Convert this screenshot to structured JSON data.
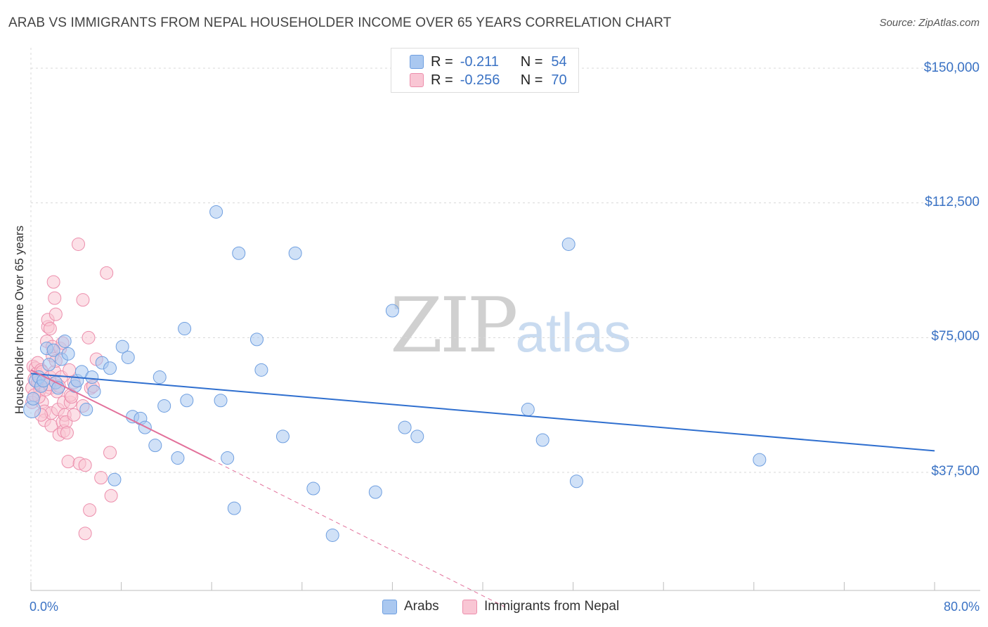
{
  "header": {
    "title": "ARAB VS IMMIGRANTS FROM NEPAL HOUSEHOLDER INCOME OVER 65 YEARS CORRELATION CHART",
    "source": "Source: ZipAtlas.com"
  },
  "watermark": {
    "zip": "ZIP",
    "atlas": "atlas"
  },
  "legend": {
    "rows": [
      {
        "r_label": "R =",
        "r_value": "-0.211",
        "n_label": "N =",
        "n_value": "54",
        "color": "#aac8f0",
        "border": "#6f9fe0"
      },
      {
        "r_label": "R =",
        "r_value": "-0.256",
        "n_label": "N =",
        "n_value": "70",
        "color": "#f9c6d4",
        "border": "#ec8eac"
      }
    ]
  },
  "bottom_legend": {
    "series1": "Arabs",
    "series2": "Immigrants from Nepal"
  },
  "colors": {
    "arabs_fill": "#aac8f0",
    "arabs_stroke": "#6f9fe0",
    "arabs_line": "#2f6fcf",
    "nepal_fill": "#f9c6d4",
    "nepal_stroke": "#ec8eac",
    "nepal_line": "#e2709a",
    "grid": "#d8d8d8",
    "axis_text": "#3a72c4"
  },
  "chart_data": {
    "type": "scatter",
    "title": "ARAB VS IMMIGRANTS FROM NEPAL HOUSEHOLDER INCOME OVER 65 YEARS CORRELATION CHART",
    "xlabel": "",
    "ylabel": "Householder Income Over 65 years",
    "xlim": [
      0,
      80
    ],
    "ylim": [
      0,
      155000
    ],
    "x_tick_labels": [
      "0.0%",
      "80.0%"
    ],
    "y_ticks": [
      37500,
      75000,
      112500,
      150000
    ],
    "y_tick_labels": [
      "$37,500",
      "$75,000",
      "$112,500",
      "$150,000"
    ],
    "grid": true,
    "series": [
      {
        "name": "Arabs",
        "R": -0.211,
        "N": 54,
        "trend": {
          "x": [
            0,
            80
          ],
          "y": [
            65000,
            43500
          ]
        },
        "points": [
          [
            0.1,
            55000
          ],
          [
            0.2,
            58000
          ],
          [
            0.4,
            63000
          ],
          [
            0.7,
            64000
          ],
          [
            0.9,
            61500
          ],
          [
            1.1,
            63000
          ],
          [
            1.4,
            72000
          ],
          [
            1.6,
            67500
          ],
          [
            2.0,
            71500
          ],
          [
            2.2,
            62500
          ],
          [
            2.4,
            61000
          ],
          [
            2.7,
            69000
          ],
          [
            3.0,
            74000
          ],
          [
            3.3,
            70500
          ],
          [
            3.9,
            61500
          ],
          [
            4.1,
            63000
          ],
          [
            4.5,
            65500
          ],
          [
            4.9,
            55000
          ],
          [
            5.4,
            64000
          ],
          [
            5.6,
            60000
          ],
          [
            6.3,
            68000
          ],
          [
            7.0,
            66500
          ],
          [
            7.4,
            35500
          ],
          [
            8.1,
            72500
          ],
          [
            8.6,
            69500
          ],
          [
            9.0,
            53000
          ],
          [
            9.7,
            52500
          ],
          [
            10.1,
            50000
          ],
          [
            11.0,
            45000
          ],
          [
            11.4,
            64000
          ],
          [
            11.8,
            56000
          ],
          [
            13.0,
            41500
          ],
          [
            13.6,
            77500
          ],
          [
            13.8,
            57500
          ],
          [
            16.4,
            110000
          ],
          [
            16.8,
            57500
          ],
          [
            17.4,
            41500
          ],
          [
            18.0,
            27500
          ],
          [
            18.4,
            98500
          ],
          [
            20.0,
            74500
          ],
          [
            20.4,
            66000
          ],
          [
            22.3,
            47500
          ],
          [
            23.4,
            98500
          ],
          [
            25.0,
            33000
          ],
          [
            26.7,
            20000
          ],
          [
            30.5,
            32000
          ],
          [
            32.0,
            82500
          ],
          [
            33.1,
            50000
          ],
          [
            34.2,
            47500
          ],
          [
            44.0,
            55000
          ],
          [
            45.3,
            46500
          ],
          [
            47.6,
            101000
          ],
          [
            48.3,
            35000
          ],
          [
            64.5,
            41000
          ]
        ]
      },
      {
        "name": "Immigrants from Nepal",
        "R": -0.256,
        "N": 70,
        "trend": {
          "x": [
            0,
            16
          ],
          "y": [
            66000,
            41000
          ]
        },
        "trend_dashed": {
          "x": [
            16,
            42
          ],
          "y": [
            41000,
            0
          ]
        },
        "points": [
          [
            0.1,
            61000
          ],
          [
            0.1,
            57000
          ],
          [
            0.2,
            67000
          ],
          [
            0.3,
            63500
          ],
          [
            0.4,
            66500
          ],
          [
            0.5,
            65000
          ],
          [
            0.6,
            62500
          ],
          [
            0.6,
            68000
          ],
          [
            0.8,
            60500
          ],
          [
            0.9,
            66000
          ],
          [
            1.0,
            65500
          ],
          [
            1.0,
            57000
          ],
          [
            1.1,
            63000
          ],
          [
            1.2,
            54500
          ],
          [
            1.2,
            52000
          ],
          [
            1.4,
            74000
          ],
          [
            1.5,
            78000
          ],
          [
            1.5,
            80000
          ],
          [
            1.7,
            61000
          ],
          [
            1.7,
            77500
          ],
          [
            1.7,
            64000
          ],
          [
            1.8,
            54000
          ],
          [
            1.8,
            50500
          ],
          [
            1.9,
            70000
          ],
          [
            1.9,
            72500
          ],
          [
            2.0,
            90500
          ],
          [
            2.1,
            86000
          ],
          [
            2.1,
            65500
          ],
          [
            2.2,
            81500
          ],
          [
            2.3,
            60000
          ],
          [
            2.4,
            55000
          ],
          [
            2.5,
            48000
          ],
          [
            2.6,
            72000
          ],
          [
            2.7,
            64000
          ],
          [
            2.8,
            73500
          ],
          [
            2.8,
            51500
          ],
          [
            2.9,
            57000
          ],
          [
            2.9,
            49000
          ],
          [
            3.0,
            53500
          ],
          [
            3.1,
            51500
          ],
          [
            3.2,
            48500
          ],
          [
            3.3,
            40500
          ],
          [
            3.4,
            66000
          ],
          [
            3.5,
            57000
          ],
          [
            3.5,
            59000
          ],
          [
            3.8,
            53500
          ],
          [
            3.8,
            62500
          ],
          [
            4.2,
            101000
          ],
          [
            4.3,
            40000
          ],
          [
            4.6,
            85500
          ],
          [
            4.6,
            56000
          ],
          [
            4.8,
            39500
          ],
          [
            4.8,
            20500
          ],
          [
            5.1,
            75000
          ],
          [
            5.2,
            27000
          ],
          [
            5.3,
            61000
          ],
          [
            5.5,
            61500
          ],
          [
            5.8,
            69000
          ],
          [
            6.2,
            36000
          ],
          [
            6.7,
            93000
          ],
          [
            7.0,
            43000
          ],
          [
            7.1,
            31000
          ],
          [
            0.7,
            58500
          ],
          [
            1.3,
            60500
          ],
          [
            2.5,
            61500
          ],
          [
            0.3,
            59000
          ],
          [
            0.9,
            53500
          ],
          [
            1.6,
            62000
          ],
          [
            2.2,
            68500
          ],
          [
            3.6,
            58500
          ]
        ]
      }
    ]
  }
}
